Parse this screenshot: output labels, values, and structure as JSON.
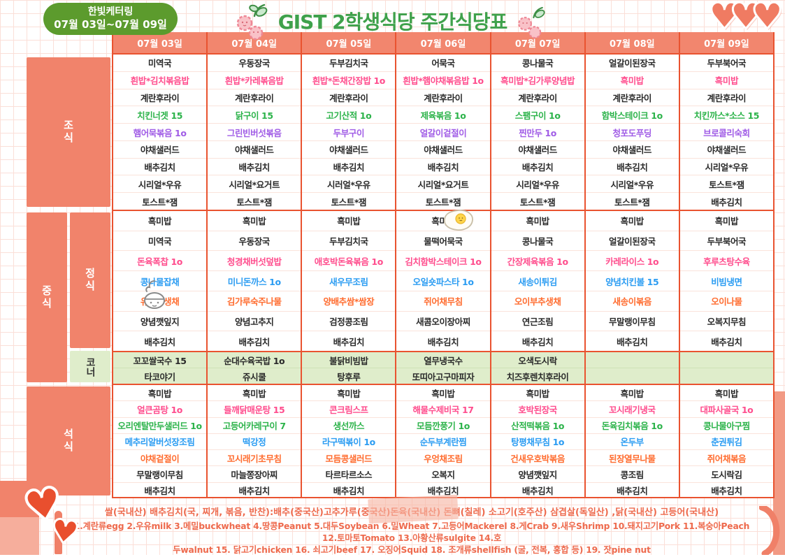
{
  "badge": {
    "line1": "한빛케터링",
    "line2": "07월 03일~07월 09일"
  },
  "title": {
    "text": "GIST 2학생식당 주간식당표"
  },
  "row_labels": {
    "breakfast": "조식",
    "lunch": "중식",
    "lunch_set": "정식",
    "corner": "코너",
    "dinner": "석식"
  },
  "item_colors": {
    "k": "#2A2A2A",
    "p": "#FF4D8D",
    "g": "#2CB34A",
    "v": "#A05CE6",
    "b": "#2B9CF2",
    "o": "#FF6C2F"
  },
  "theme_colors": {
    "salmon_header": "#F2866E",
    "orange_line": "#E95330",
    "corner_green": "#DFEDCB",
    "badge_green": "#5C9B2D",
    "title_green": "#3FA14B",
    "footer_text": "#EE6A4D"
  },
  "table": {
    "days": [
      {
        "date": "07월 03일",
        "breakfast": [
          {
            "t": "미역국",
            "c": "k"
          },
          {
            "t": "흰밥*김치볶음밥",
            "c": "p"
          },
          {
            "t": "계란후라이",
            "c": "k"
          },
          {
            "t": "치킨너겟 15",
            "c": "g"
          },
          {
            "t": "햄어묵볶음 1o",
            "c": "v"
          },
          {
            "t": "야채샐러드",
            "c": "k"
          },
          {
            "t": "배추김치",
            "c": "k"
          },
          {
            "t": "시리얼*우유",
            "c": "k"
          },
          {
            "t": "토스트*잼",
            "c": "k"
          }
        ],
        "lunch": [
          {
            "t": "흑미밥",
            "c": "k"
          },
          {
            "t": "미역국",
            "c": "k"
          },
          {
            "t": "돈육폭찹 1o",
            "c": "p"
          },
          {
            "t": "콩나물잡채",
            "c": "b"
          },
          {
            "t": "유자무생채",
            "c": "o"
          },
          {
            "t": "양념깻잎지",
            "c": "k"
          },
          {
            "t": "배추김치",
            "c": "k"
          }
        ],
        "corner": [
          "꼬꼬쌀국수 15",
          "타코야기"
        ],
        "dinner": [
          {
            "t": "흑미밥",
            "c": "k"
          },
          {
            "t": "얼큰곰탕 1o",
            "c": "p"
          },
          {
            "t": "오리엔탈만두샐러드 1o",
            "c": "g"
          },
          {
            "t": "메추리알버섯장조림",
            "c": "b"
          },
          {
            "t": "야채겉절이",
            "c": "o"
          },
          {
            "t": "무말랭이무침",
            "c": "k"
          },
          {
            "t": "배추김치",
            "c": "k"
          }
        ]
      },
      {
        "date": "07월 04일",
        "breakfast": [
          {
            "t": "우동장국",
            "c": "k"
          },
          {
            "t": "흰밥*카레볶음밥",
            "c": "p"
          },
          {
            "t": "계란후라이",
            "c": "k"
          },
          {
            "t": "닭구이 15",
            "c": "g"
          },
          {
            "t": "그린빈버섯볶음",
            "c": "v"
          },
          {
            "t": "야채샐러드",
            "c": "k"
          },
          {
            "t": "배추김치",
            "c": "k"
          },
          {
            "t": "시리얼*요거트",
            "c": "k"
          },
          {
            "t": "토스트*잼",
            "c": "k"
          }
        ],
        "lunch": [
          {
            "t": "흑미밥",
            "c": "k"
          },
          {
            "t": "우동장국",
            "c": "k"
          },
          {
            "t": "청경채버섯덮밥",
            "c": "p"
          },
          {
            "t": "미니돈까스 1o",
            "c": "b"
          },
          {
            "t": "김가루숙주나물",
            "c": "o"
          },
          {
            "t": "양념고추지",
            "c": "k"
          },
          {
            "t": "배추김치",
            "c": "k"
          }
        ],
        "corner": [
          "순대수육국밥 1o",
          "쥬시쿨"
        ],
        "dinner": [
          {
            "t": "흑미밥",
            "c": "k"
          },
          {
            "t": "들깨닭매운탕 15",
            "c": "p"
          },
          {
            "t": "고등어카레구이 7",
            "c": "g"
          },
          {
            "t": "떡강정",
            "c": "b"
          },
          {
            "t": "꼬시래기초무침",
            "c": "o"
          },
          {
            "t": "마늘쫑장아찌",
            "c": "k"
          },
          {
            "t": "배추김치",
            "c": "k"
          }
        ]
      },
      {
        "date": "07월 05일",
        "breakfast": [
          {
            "t": "두부김치국",
            "c": "k"
          },
          {
            "t": "흰밥*돈채간장밥 1o",
            "c": "p"
          },
          {
            "t": "계란후라이",
            "c": "k"
          },
          {
            "t": "고기산적 1o",
            "c": "g"
          },
          {
            "t": "두부구이",
            "c": "v"
          },
          {
            "t": "야채샐러드",
            "c": "k"
          },
          {
            "t": "배추김치",
            "c": "k"
          },
          {
            "t": "시러얼*우유",
            "c": "k"
          },
          {
            "t": "토스트*잼",
            "c": "k"
          }
        ],
        "lunch": [
          {
            "t": "흑미밥",
            "c": "k"
          },
          {
            "t": "두부김치국",
            "c": "k"
          },
          {
            "t": "애호박돈육볶음 1o",
            "c": "p"
          },
          {
            "t": "새우무조림",
            "c": "b"
          },
          {
            "t": "양배추쌈*쌈장",
            "c": "o"
          },
          {
            "t": "검정콩조림",
            "c": "k"
          },
          {
            "t": "배추김치",
            "c": "k"
          }
        ],
        "corner": [
          "불닭비빔밥",
          "탕후루"
        ],
        "dinner": [
          {
            "t": "흑미밥",
            "c": "k"
          },
          {
            "t": "콘크림스프",
            "c": "p"
          },
          {
            "t": "생선까스",
            "c": "g"
          },
          {
            "t": "라구떡볶이 1o",
            "c": "b"
          },
          {
            "t": "모듬콩샐러드",
            "c": "o"
          },
          {
            "t": "타르타르소스",
            "c": "k"
          },
          {
            "t": "배추김치",
            "c": "k"
          }
        ]
      },
      {
        "date": "07월 06일",
        "breakfast": [
          {
            "t": "어묵국",
            "c": "k"
          },
          {
            "t": "흰밥*햄야채볶음밥 1o",
            "c": "p"
          },
          {
            "t": "계란후라이",
            "c": "k"
          },
          {
            "t": "제육볶음 1o",
            "c": "g"
          },
          {
            "t": "얼갈이겉절이",
            "c": "v"
          },
          {
            "t": "야채샐러드",
            "c": "k"
          },
          {
            "t": "배추김치",
            "c": "k"
          },
          {
            "t": "시리얼*요거트",
            "c": "k"
          },
          {
            "t": "토스트*잼",
            "c": "k"
          }
        ],
        "lunch": [
          {
            "t": "흑미밥",
            "c": "k"
          },
          {
            "t": "물떡어묵국",
            "c": "k"
          },
          {
            "t": "김치함박스테이크 1o",
            "c": "p"
          },
          {
            "t": "오일숏파스타 1o",
            "c": "b"
          },
          {
            "t": "쥐어채무침",
            "c": "o"
          },
          {
            "t": "새콤오이장아찌",
            "c": "k"
          },
          {
            "t": "배추김치",
            "c": "k"
          }
        ],
        "corner": [
          "열무냉국수",
          "또띠아고구마피자"
        ],
        "dinner": [
          {
            "t": "흑미밥",
            "c": "k"
          },
          {
            "t": "해물수제비국 17",
            "c": "p"
          },
          {
            "t": "모듬깐풍기 1o",
            "c": "g"
          },
          {
            "t": "순두부계란찜",
            "c": "b"
          },
          {
            "t": "우엉채조림",
            "c": "o"
          },
          {
            "t": "오복지",
            "c": "k"
          },
          {
            "t": "배추김치",
            "c": "k"
          }
        ]
      },
      {
        "date": "07월 07일",
        "breakfast": [
          {
            "t": "콩나물국",
            "c": "k"
          },
          {
            "t": "흑미밥*김가루양념밥",
            "c": "p"
          },
          {
            "t": "계란후라이",
            "c": "k"
          },
          {
            "t": "스팸구이 1o",
            "c": "g"
          },
          {
            "t": "찐만두 1o",
            "c": "v"
          },
          {
            "t": "야채샐러드",
            "c": "k"
          },
          {
            "t": "배추김치",
            "c": "k"
          },
          {
            "t": "시리얼*우유",
            "c": "k"
          },
          {
            "t": "토스트*잼",
            "c": "k"
          }
        ],
        "lunch": [
          {
            "t": "흑미밥",
            "c": "k"
          },
          {
            "t": "콩나물국",
            "c": "k"
          },
          {
            "t": "간장제육볶음 1o",
            "c": "p"
          },
          {
            "t": "새송이튀김",
            "c": "b"
          },
          {
            "t": "오이부추생채",
            "c": "o"
          },
          {
            "t": "연근조림",
            "c": "k"
          },
          {
            "t": "배추김치",
            "c": "k"
          }
        ],
        "corner": [
          "오색도시락",
          "치즈후렌치후라이"
        ],
        "dinner": [
          {
            "t": "흑미밥",
            "c": "k"
          },
          {
            "t": "호박된장국",
            "c": "p"
          },
          {
            "t": "산적떡볶음 1o",
            "c": "g"
          },
          {
            "t": "탕평채무침 1o",
            "c": "b"
          },
          {
            "t": "건새우호박볶음",
            "c": "o"
          },
          {
            "t": "양념깻잎지",
            "c": "k"
          },
          {
            "t": "배추김치",
            "c": "k"
          }
        ]
      },
      {
        "date": "07월 08일",
        "breakfast": [
          {
            "t": "얼갈이된장국",
            "c": "k"
          },
          {
            "t": "흑미밥",
            "c": "p"
          },
          {
            "t": "계란후라이",
            "c": "k"
          },
          {
            "t": "함박스테이크 1o",
            "c": "g"
          },
          {
            "t": "청포도푸딩",
            "c": "v"
          },
          {
            "t": "야채샐러드",
            "c": "k"
          },
          {
            "t": "배추김치",
            "c": "k"
          },
          {
            "t": "시리얼*우유",
            "c": "k"
          },
          {
            "t": "토스트*잼",
            "c": "k"
          }
        ],
        "lunch": [
          {
            "t": "흑미밥",
            "c": "k"
          },
          {
            "t": "얼갈이된장국",
            "c": "k"
          },
          {
            "t": "카레라이스 1o",
            "c": "p"
          },
          {
            "t": "양념치킨볼 15",
            "c": "b"
          },
          {
            "t": "새송이볶음",
            "c": "o"
          },
          {
            "t": "무말랭이무침",
            "c": "k"
          },
          {
            "t": "배추김치",
            "c": "k"
          }
        ],
        "corner": [
          "",
          ""
        ],
        "dinner": [
          {
            "t": "흑미밥",
            "c": "k"
          },
          {
            "t": "꼬시래기냉국",
            "c": "p"
          },
          {
            "t": "돈육김치볶음 1o",
            "c": "g"
          },
          {
            "t": "온두부",
            "c": "b"
          },
          {
            "t": "된장열무나물",
            "c": "o"
          },
          {
            "t": "콩조림",
            "c": "k"
          },
          {
            "t": "배추김치",
            "c": "k"
          }
        ]
      },
      {
        "date": "07월 09일",
        "breakfast": [
          {
            "t": "두부북어국",
            "c": "k"
          },
          {
            "t": "흑미밥",
            "c": "p"
          },
          {
            "t": "계란후라이",
            "c": "k"
          },
          {
            "t": "치킨까스*소스 15",
            "c": "g"
          },
          {
            "t": "브로콜리숙회",
            "c": "v"
          },
          {
            "t": "야채샐러드",
            "c": "k"
          },
          {
            "t": "시리얼*우유",
            "c": "k"
          },
          {
            "t": "토스트*잼",
            "c": "k"
          },
          {
            "t": "배추김치",
            "c": "k"
          }
        ],
        "lunch": [
          {
            "t": "흑미밥",
            "c": "k"
          },
          {
            "t": "두부북어국",
            "c": "k"
          },
          {
            "t": "후루츠탕수육",
            "c": "p"
          },
          {
            "t": "비빔냉면",
            "c": "b"
          },
          {
            "t": "오이나물",
            "c": "o"
          },
          {
            "t": "오복지무침",
            "c": "k"
          },
          {
            "t": "배추김치",
            "c": "k"
          }
        ],
        "corner": [
          "",
          ""
        ],
        "dinner": [
          {
            "t": "흑미밥",
            "c": "k"
          },
          {
            "t": "대파사골국 1o",
            "c": "p"
          },
          {
            "t": "콩나물아구찜",
            "c": "g"
          },
          {
            "t": "춘권튀김",
            "c": "b"
          },
          {
            "t": "쥐어채볶음",
            "c": "o"
          },
          {
            "t": "도시락김",
            "c": "k"
          },
          {
            "t": "배추김치",
            "c": "k"
          }
        ]
      }
    ]
  },
  "footer": {
    "line1": "쌀(국내산) 배추김치(국, 찌개, 볶음, 반찬):배추(중국산)고추가루(중국산)돈육(국내산) 돈뼈(칠레) 소고기(호주산) 삼겹살(독일산) ,닭(국내산) 고등어(국내산)",
    "line2": "1.계란류egg 2.우유milk 3.메밀buckwheat 4.땅콩Peanut 5.대두Soybean 6.밀Wheat 7.고등어Mackerel 8.게Crab 9.새우Shrimp 10.돼지고기Pork 11.복숭아Peach 12.토마토Tomato 13.아황산류sulgite 14.호",
    "line3": "두walnut 15. 닭고기chicken 16. 쇠고기beef 17. 오징어Squid 18. 조개류shellfish (굴, 전복, 홍합 등) 19. 잣pine nut"
  }
}
